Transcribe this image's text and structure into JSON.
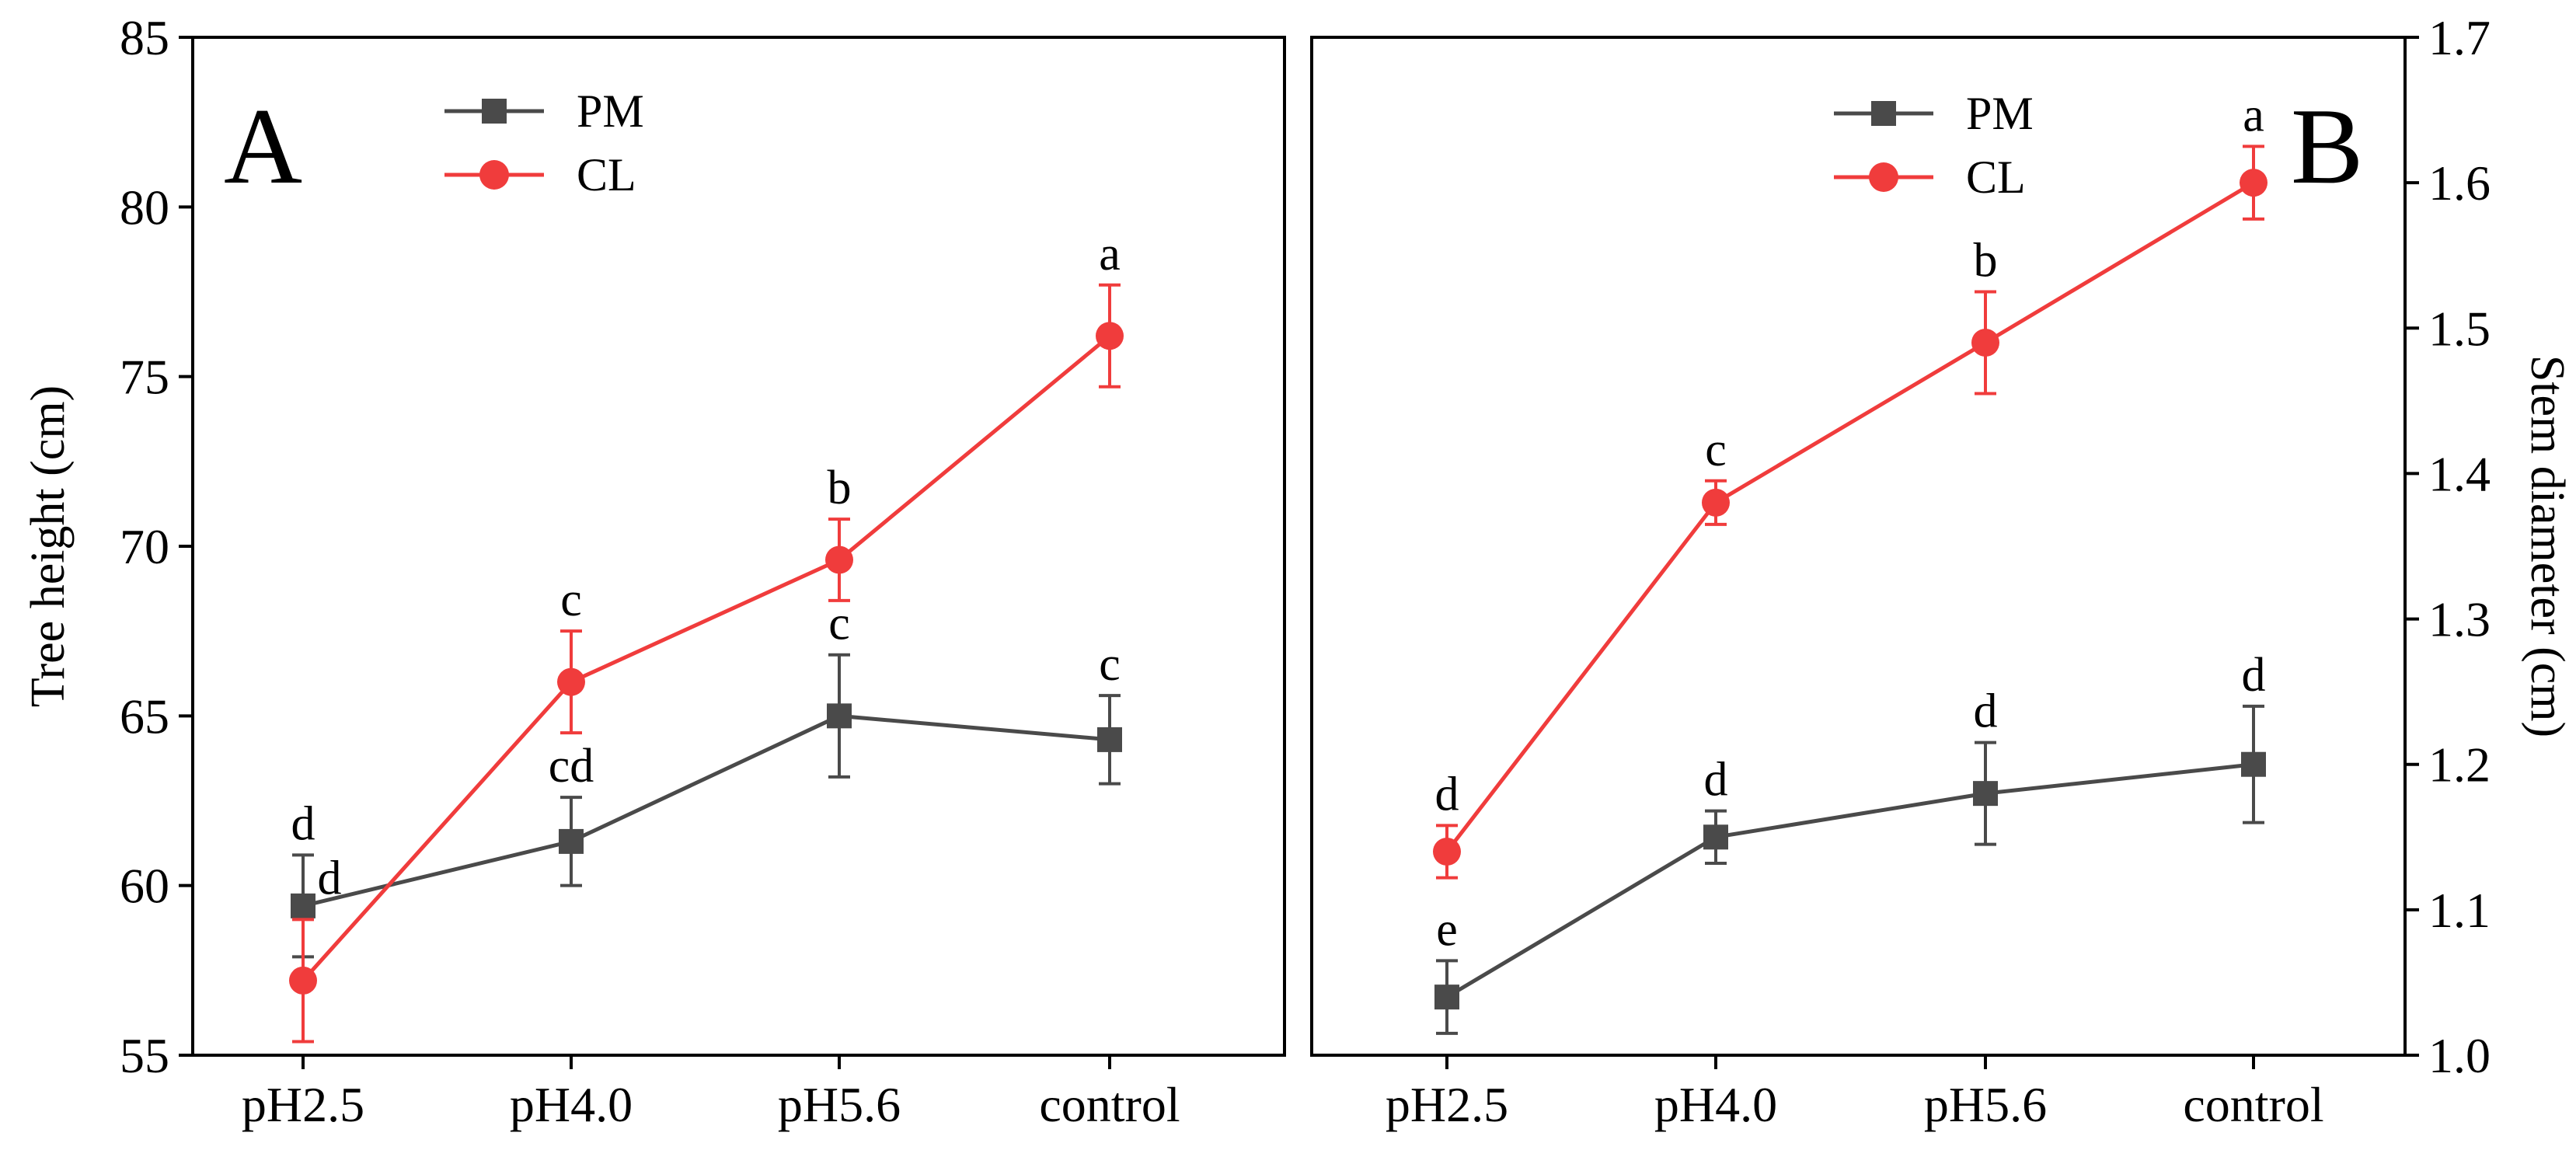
{
  "chart_data": [
    {
      "type": "line",
      "panel_label": "A",
      "ylabel": "Tree height (cm)",
      "xlabel": "",
      "categories": [
        "pH2.5",
        "pH4.0",
        "pH5.6",
        "control"
      ],
      "ylim": [
        55,
        85
      ],
      "yticks": [
        "55",
        "60",
        "65",
        "70",
        "75",
        "80",
        "85"
      ],
      "legend_position": "top-left",
      "series": [
        {
          "name": "PM",
          "color": "#4a4a4a",
          "marker": "square",
          "values": [
            59.4,
            61.3,
            65.0,
            64.3
          ],
          "errors": [
            1.5,
            1.3,
            1.8,
            1.3
          ],
          "letters": [
            "d",
            "cd",
            "c",
            "c"
          ]
        },
        {
          "name": "CL",
          "color": "#f03c3c",
          "marker": "circle",
          "values": [
            57.2,
            66.0,
            69.6,
            76.2
          ],
          "errors": [
            1.8,
            1.5,
            1.2,
            1.5
          ],
          "letters": [
            "d",
            "c",
            "b",
            "a"
          ]
        }
      ]
    },
    {
      "type": "line",
      "panel_label": "B",
      "ylabel": "Stem diameter (cm)",
      "xlabel": "",
      "categories": [
        "pH2.5",
        "pH4.0",
        "pH5.6",
        "control"
      ],
      "ylim": [
        1.0,
        1.7
      ],
      "yticks": [
        "1.0",
        "1.1",
        "1.2",
        "1.3",
        "1.4",
        "1.5",
        "1.6",
        "1.7"
      ],
      "legend_position": "top-right",
      "series": [
        {
          "name": "PM",
          "color": "#4a4a4a",
          "marker": "square",
          "values": [
            1.04,
            1.15,
            1.18,
            1.2
          ],
          "errors": [
            0.025,
            0.018,
            0.035,
            0.04
          ],
          "letters": [
            "e",
            "d",
            "d",
            "d"
          ]
        },
        {
          "name": "CL",
          "color": "#f03c3c",
          "marker": "circle",
          "values": [
            1.14,
            1.38,
            1.49,
            1.6
          ],
          "errors": [
            0.018,
            0.015,
            0.035,
            0.025
          ],
          "letters": [
            "d",
            "c",
            "b",
            "a"
          ]
        }
      ]
    }
  ]
}
